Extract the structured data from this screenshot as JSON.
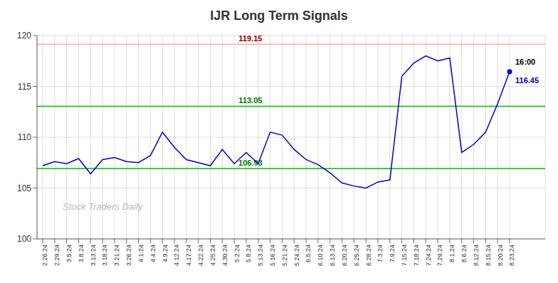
{
  "chart_data": {
    "type": "line",
    "title": "IJR Long Term Signals",
    "color": "#0000cc",
    "ylim": [
      100,
      120
    ],
    "yticks": [
      100,
      105,
      110,
      115,
      120
    ],
    "grid": true,
    "categories": [
      "2.26.24",
      "2.29.24",
      "3.5.24",
      "3.8.24",
      "3.13.24",
      "3.18.24",
      "3.21.24",
      "3.26.24",
      "4.1.24",
      "4.4.24",
      "4.9.24",
      "4.12.24",
      "4.17.24",
      "4.22.24",
      "4.25.24",
      "4.30.24",
      "5.2.24",
      "5.8.24",
      "5.13.24",
      "5.16.24",
      "5.21.24",
      "5.24.24",
      "6.5.24",
      "6.10.24",
      "6.13.24",
      "6.20.24",
      "6.25.24",
      "6.28.24",
      "7.3.24",
      "7.9.24",
      "7.15.24",
      "7.18.24",
      "7.24.24",
      "7.29.24",
      "8.1.24",
      "8.6.24",
      "8.12.24",
      "8.15.24",
      "8.20.24",
      "8.23.24"
    ],
    "values": [
      107.2,
      107.6,
      107.4,
      107.9,
      106.4,
      107.8,
      108.0,
      107.6,
      107.5,
      108.2,
      110.5,
      109.0,
      107.8,
      107.5,
      107.2,
      108.8,
      107.4,
      108.5,
      107.4,
      110.5,
      110.2,
      108.8,
      107.8,
      107.3,
      106.5,
      105.5,
      105.2,
      105.0,
      105.6,
      105.8,
      116.0,
      117.3,
      118.0,
      117.5,
      117.8,
      108.5,
      109.3,
      110.5,
      113.3,
      116.45
    ],
    "reference_lines": [
      {
        "value": 119.15,
        "color": "#ffaaaa",
        "label_color": "#990000"
      },
      {
        "value": 113.05,
        "color": "#00bb00",
        "label_color": "#007700"
      },
      {
        "value": 106.93,
        "color": "#00bb00",
        "label_color": "#007700"
      }
    ],
    "annotations": [
      {
        "text": "16:00",
        "color": "#000000"
      },
      {
        "text": "116.45",
        "color": "#0000cc"
      },
      {
        "text": "Stock Traders Daily",
        "color": "#bbbbbb"
      }
    ]
  }
}
